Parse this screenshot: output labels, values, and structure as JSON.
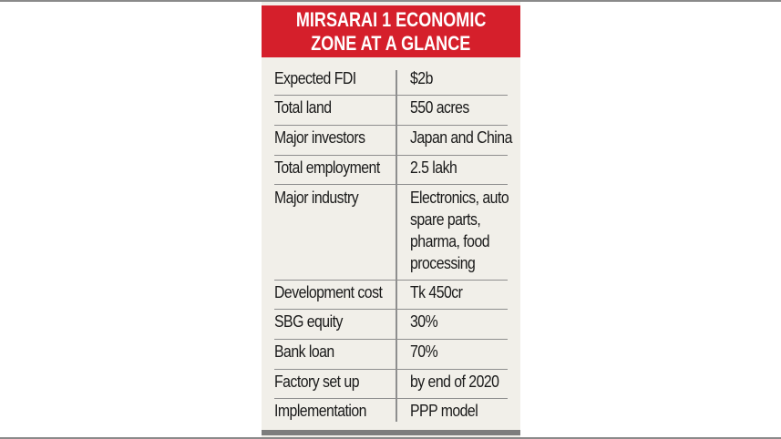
{
  "title_line1": "MIRSARAI 1 ECONOMIC",
  "title_line2": "ZONE AT A GLANCE",
  "accent_color": "#d51f2b",
  "rows": [
    {
      "label": "Expected FDI",
      "value": [
        "$2b"
      ]
    },
    {
      "label": "Total land",
      "value": [
        "550 acres"
      ]
    },
    {
      "label": "Major investors",
      "value": [
        "Japan and China"
      ]
    },
    {
      "label": "Total employment",
      "value": [
        "2.5 lakh"
      ]
    },
    {
      "label": "Major industry",
      "value": [
        "Electronics, auto",
        "spare parts,",
        "pharma, food",
        "processing"
      ]
    },
    {
      "label": "Development cost",
      "value": [
        "Tk 450cr"
      ]
    },
    {
      "label": "SBG equity",
      "value": [
        "30%"
      ]
    },
    {
      "label": "Bank loan",
      "value": [
        "70%"
      ]
    },
    {
      "label": "Factory set up",
      "value": [
        "by end of 2020"
      ]
    },
    {
      "label": "Implementation",
      "value": [
        "PPP model"
      ]
    }
  ]
}
